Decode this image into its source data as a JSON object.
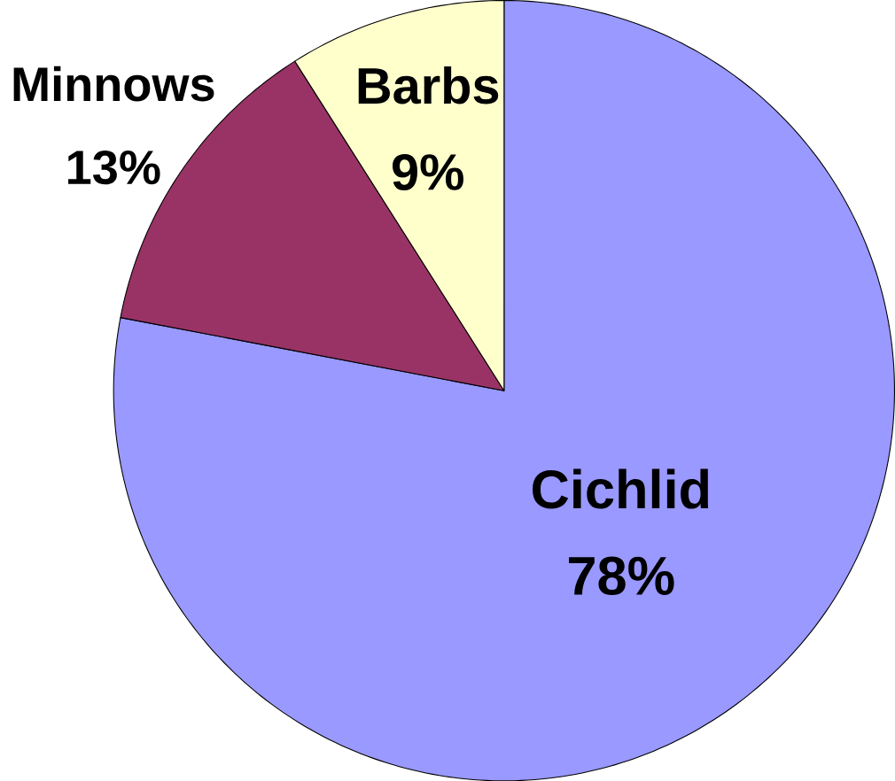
{
  "chart_data": {
    "type": "pie",
    "categories": [
      "Cichlid",
      "Minnows",
      "Barbs"
    ],
    "values": [
      78,
      13,
      9
    ],
    "value_labels": [
      "78%",
      "13%",
      "9%"
    ],
    "colors": [
      "#9999ff",
      "#993366",
      "#ffffcc"
    ]
  }
}
